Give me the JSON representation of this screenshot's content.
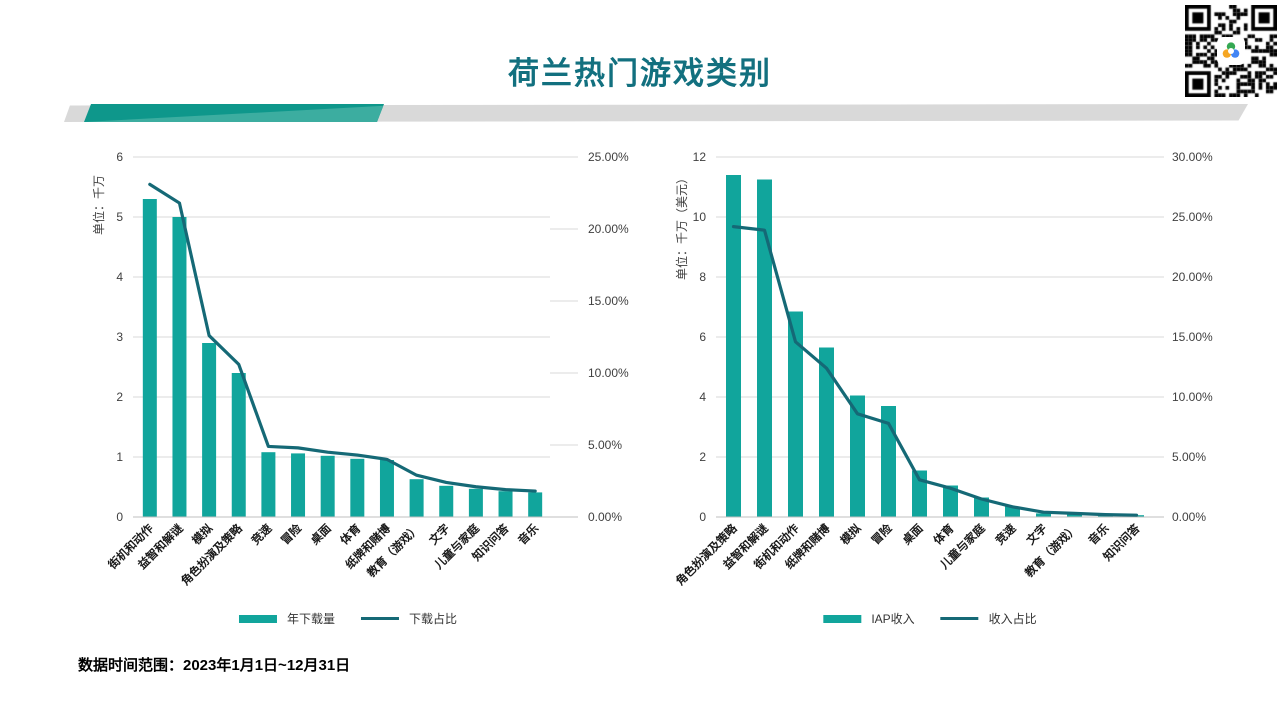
{
  "page": {
    "title": "荷兰热门游戏类别",
    "footer": "数据时间范围：2023年1月1日~12月31日"
  },
  "colors": {
    "bar": "#11a59c",
    "line": "#156976",
    "title_text": "#12707f",
    "grid": "#d9d9d9",
    "axis_line": "#bfbfbf",
    "tick_text": "#404040",
    "category_text": "#1a1a1a",
    "band_gray": "#d9d9d9",
    "band_teal": "#0e978b",
    "band_teal_light": "#3cada0",
    "qr_logo_green": "#34a853",
    "qr_logo_blue": "#4285f4",
    "qr_logo_orange": "#f5a623"
  },
  "chart_data": [
    {
      "type": "bar",
      "combo": "bar+line",
      "unit_label": "单位：千万",
      "categories": [
        "街机和动作",
        "益智和解谜",
        "模拟",
        "角色扮演及策略",
        "竞速",
        "冒险",
        "桌面",
        "体育",
        "纸牌和赌博",
        "教育（游戏）",
        "文字",
        "儿童与家庭",
        "知识问答",
        "音乐"
      ],
      "series": [
        {
          "name": "年下载量",
          "type": "bar",
          "axis": "left",
          "values": [
            5.3,
            5.0,
            2.9,
            2.4,
            1.08,
            1.06,
            1.02,
            0.97,
            0.95,
            0.63,
            0.52,
            0.47,
            0.43,
            0.41
          ]
        },
        {
          "name": "下载占比",
          "type": "line",
          "axis": "right",
          "values": [
            23.1,
            21.8,
            12.6,
            10.6,
            4.9,
            4.8,
            4.5,
            4.3,
            4.0,
            2.9,
            2.4,
            2.1,
            1.9,
            1.8
          ]
        }
      ],
      "left_axis": {
        "min": 0,
        "max": 6,
        "step": 1
      },
      "right_axis": {
        "min": 0,
        "max": 25,
        "step": 5,
        "format": "percent"
      },
      "grid": true,
      "legend_position": "bottom"
    },
    {
      "type": "bar",
      "combo": "bar+line",
      "unit_label": "单位：千万（美元）",
      "categories": [
        "角色扮演及策略",
        "益智和解谜",
        "街机和动作",
        "纸牌和赌博",
        "模拟",
        "冒险",
        "桌面",
        "体育",
        "儿童与家庭",
        "竞速",
        "文字",
        "教育（游戏）",
        "音乐",
        "知识问答"
      ],
      "series": [
        {
          "name": "IAP收入",
          "type": "bar",
          "axis": "left",
          "values": [
            11.4,
            11.25,
            6.85,
            5.65,
            4.05,
            3.7,
            1.55,
            1.05,
            0.65,
            0.35,
            0.12,
            0.1,
            0.08,
            0.06
          ]
        },
        {
          "name": "收入占比",
          "type": "line",
          "axis": "right",
          "values": [
            24.2,
            23.9,
            14.6,
            12.4,
            8.6,
            7.8,
            3.1,
            2.4,
            1.5,
            0.85,
            0.4,
            0.3,
            0.2,
            0.15
          ]
        }
      ],
      "left_axis": {
        "min": 0,
        "max": 12,
        "step": 2
      },
      "right_axis": {
        "min": 0,
        "max": 30,
        "step": 5,
        "format": "percent"
      },
      "grid": true,
      "legend_position": "bottom"
    }
  ]
}
